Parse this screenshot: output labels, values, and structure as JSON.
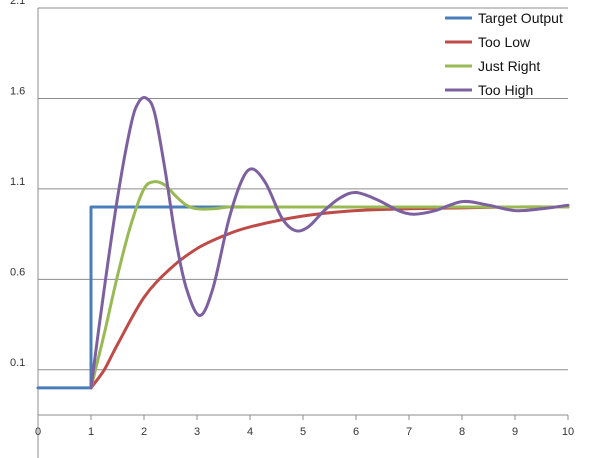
{
  "chart_data": {
    "type": "line",
    "title": "",
    "xlabel": "",
    "ylabel": "",
    "xlim": [
      0,
      10
    ],
    "ylim": [
      -0.15,
      2.1
    ],
    "grid": true,
    "legend_position": "top-right",
    "x_ticks": [
      0,
      1,
      2,
      3,
      4,
      5,
      6,
      7,
      8,
      9,
      10
    ],
    "x_tick_labels": [
      "0",
      "1",
      "2",
      "3",
      "4",
      "5",
      "6",
      "7",
      "8",
      "9",
      "10"
    ],
    "y_ticks": [
      0.1,
      0.6,
      1.1,
      1.6,
      2.1
    ],
    "y_tick_labels": [
      "0.1",
      "0.6",
      "1.1",
      "1.6",
      "2.1"
    ],
    "series": [
      {
        "name": "Target Output",
        "color": "#4a7ebb",
        "x": [
          0,
          1,
          1,
          10
        ],
        "y": [
          0,
          0,
          1,
          1
        ]
      },
      {
        "name": "Too Low",
        "color": "#be4b48",
        "x": [
          1.0,
          1.25,
          1.5,
          2.0,
          2.5,
          3.0,
          3.5,
          4.0,
          5.0,
          6.0,
          7.0,
          8.0,
          9.0,
          10.0
        ],
        "y": [
          0.0,
          0.1,
          0.24,
          0.5,
          0.66,
          0.77,
          0.84,
          0.89,
          0.95,
          0.98,
          0.99,
          0.995,
          1.0,
          1.0
        ]
      },
      {
        "name": "Just Right",
        "color": "#98b954",
        "x": [
          1.0,
          1.25,
          1.5,
          1.75,
          2.0,
          2.2,
          2.4,
          2.6,
          2.8,
          3.0,
          3.3,
          3.6,
          4.0,
          5.0,
          6.0,
          7.0,
          8.0,
          9.0,
          10.0
        ],
        "y": [
          0.0,
          0.3,
          0.62,
          0.9,
          1.1,
          1.14,
          1.12,
          1.06,
          1.01,
          0.99,
          0.99,
          1.0,
          1.0,
          1.0,
          1.0,
          1.0,
          1.0,
          1.0,
          1.0
        ]
      },
      {
        "name": "Too High",
        "color": "#7d60a0",
        "x": [
          1.0,
          1.25,
          1.5,
          1.75,
          1.9,
          2.05,
          2.2,
          2.4,
          2.6,
          2.8,
          3.05,
          3.3,
          3.6,
          3.85,
          4.05,
          4.3,
          4.6,
          4.85,
          5.1,
          5.4,
          5.7,
          6.0,
          6.4,
          6.8,
          7.1,
          7.5,
          8.0,
          8.5,
          9.0,
          9.5,
          10.0
        ],
        "y": [
          0.0,
          0.55,
          1.05,
          1.45,
          1.58,
          1.6,
          1.52,
          1.2,
          0.82,
          0.55,
          0.4,
          0.55,
          0.93,
          1.15,
          1.21,
          1.13,
          0.94,
          0.87,
          0.89,
          0.98,
          1.05,
          1.08,
          1.04,
          0.98,
          0.96,
          0.98,
          1.03,
          1.01,
          0.98,
          0.99,
          1.01
        ]
      }
    ]
  }
}
